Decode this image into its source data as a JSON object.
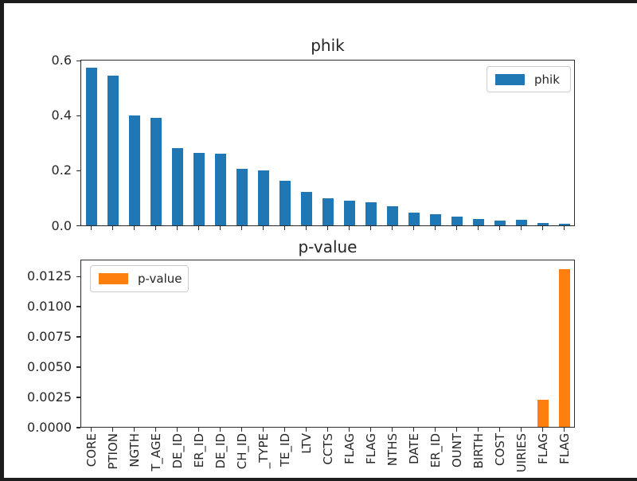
{
  "figure": {
    "frame_color": "#1d1d1d",
    "background_color": "#ffffff",
    "text_color": "#262626",
    "spine_color": "#2b2b2b",
    "accent_blue": "#1f77b4",
    "accent_orange": "#ff7f0e"
  },
  "chart_data": [
    {
      "type": "bar",
      "title": "phik",
      "legend": {
        "label": "phik",
        "position": "upper right",
        "color": "#1f77b4"
      },
      "bar_color": "#1f77b4",
      "ylim": [
        0,
        0.604
      ],
      "yticks": [
        "0.0",
        "0.2",
        "0.4",
        "0.6"
      ],
      "grid": false,
      "xtick_labels_shown": false,
      "categories": [
        "CORE",
        "PTION",
        "NGTH",
        "T_AGE",
        "DE_ID",
        "ER_ID",
        "DE_ID",
        "CH_ID",
        "_TYPE",
        "TE_ID",
        "LTV",
        "CCTS",
        "FLAG",
        "FLAG",
        "NTHS",
        "DATE",
        "ER_ID",
        "OUNT",
        "BIRTH",
        "COST",
        "UIRIES",
        "FLAG",
        "FLAG"
      ],
      "values": [
        0.575,
        0.545,
        0.4,
        0.392,
        0.283,
        0.266,
        0.262,
        0.206,
        0.202,
        0.165,
        0.122,
        0.1,
        0.09,
        0.085,
        0.07,
        0.049,
        0.042,
        0.034,
        0.025,
        0.02,
        0.021,
        0.011,
        0.008
      ]
    },
    {
      "type": "bar",
      "title": "p-value",
      "legend": {
        "label": "p-value",
        "position": "upper left",
        "color": "#ff7f0e"
      },
      "bar_color": "#ff7f0e",
      "ylim": [
        0,
        0.0139
      ],
      "yticks": [
        "0.0000",
        "0.0025",
        "0.0050",
        "0.0075",
        "0.0100",
        "0.0125"
      ],
      "grid": false,
      "xtick_labels_shown": true,
      "categories": [
        "CORE",
        "PTION",
        "NGTH",
        "T_AGE",
        "DE_ID",
        "ER_ID",
        "DE_ID",
        "CH_ID",
        "_TYPE",
        "TE_ID",
        "LTV",
        "CCTS",
        "FLAG",
        "FLAG",
        "NTHS",
        "DATE",
        "ER_ID",
        "OUNT",
        "BIRTH",
        "COST",
        "UIRIES",
        "FLAG",
        "FLAG"
      ],
      "values": [
        0,
        0,
        0,
        0,
        0,
        0,
        0,
        0,
        0,
        0,
        0,
        0,
        0,
        0,
        0,
        0,
        0,
        0,
        0,
        0,
        0,
        0.0023,
        0.0131
      ]
    }
  ]
}
